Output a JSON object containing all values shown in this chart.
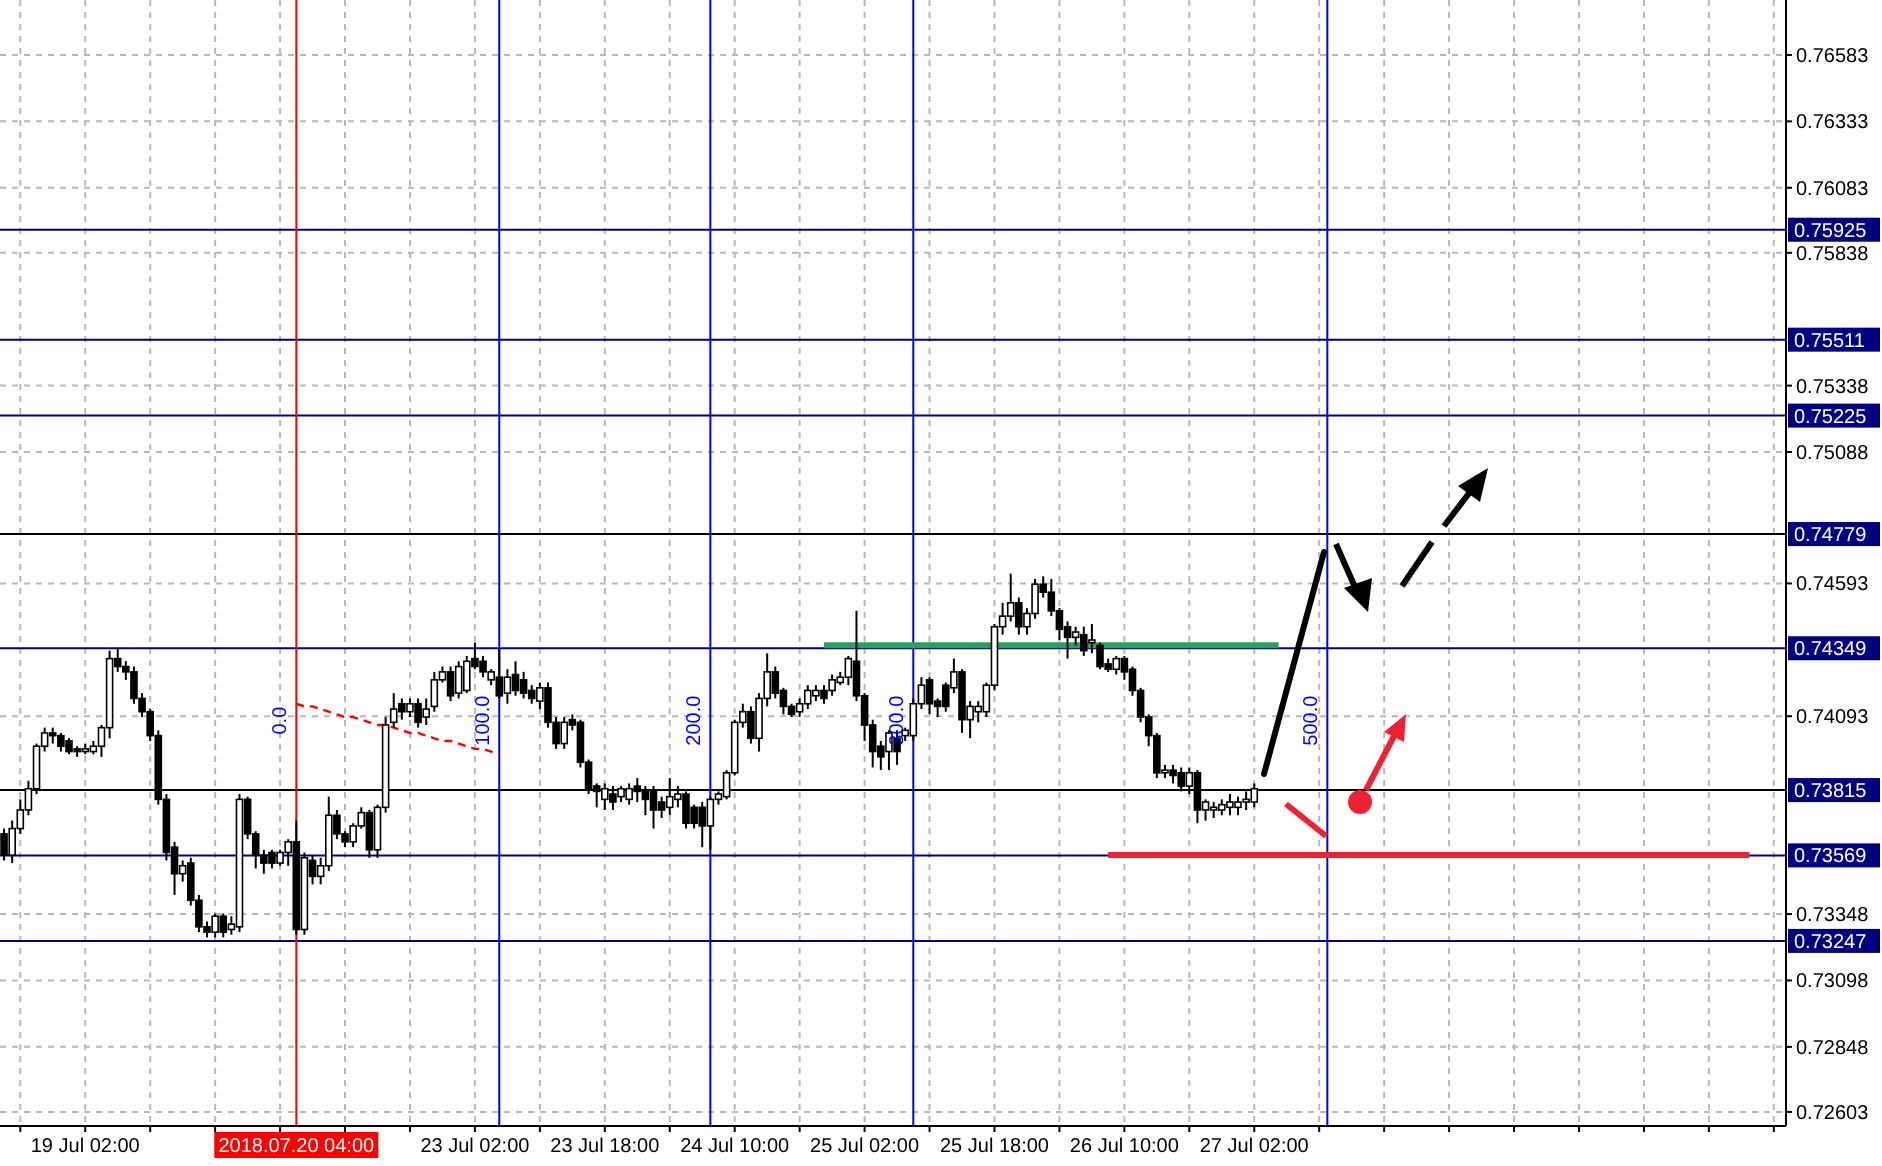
{
  "chart_data": {
    "type": "candlestick",
    "categories": [
      null,
      null,
      null,
      null,
      null,
      null,
      null,
      null,
      null,
      null,
      "19 Jul 02:00",
      null,
      null,
      null,
      null,
      null,
      null,
      null,
      null,
      null,
      null,
      null,
      null,
      null,
      null,
      null,
      null,
      null,
      null,
      null,
      null,
      null,
      null,
      null,
      null,
      null,
      "2018.07.20 04:00",
      null,
      null,
      null,
      null,
      null,
      null,
      null,
      null,
      null,
      null,
      null,
      null,
      null,
      null,
      null,
      null,
      null,
      null,
      null,
      null,
      null,
      "23 Jul 02:00",
      null,
      null,
      null,
      null,
      null,
      null,
      null,
      null,
      null,
      null,
      null,
      null,
      null,
      null,
      null,
      "23 Jul 18:00",
      null,
      null,
      null,
      null,
      null,
      null,
      null,
      null,
      null,
      null,
      null,
      null,
      null,
      null,
      null,
      "24 Jul 10:00",
      null,
      null,
      null,
      null,
      null,
      null,
      null,
      null,
      null,
      null,
      null,
      null,
      null,
      null,
      null,
      "25 Jul 02:00",
      null,
      null,
      null,
      null,
      null,
      null,
      null,
      null,
      null,
      null,
      null,
      null,
      null,
      null,
      null,
      "25 Jul 18:00",
      null,
      null,
      null,
      null,
      null,
      null,
      null,
      null,
      null,
      null,
      null,
      null,
      null,
      null,
      null,
      "26 Jul 10:00",
      null,
      null,
      null,
      null,
      null,
      null,
      null,
      null,
      null,
      null,
      null,
      null,
      null,
      null,
      null,
      "27 Jul 02:00",
      null,
      null,
      null,
      null,
      null,
      null,
      null,
      null,
      null,
      null,
      null,
      null,
      null,
      null,
      null,
      null,
      null,
      null,
      null,
      null,
      null,
      null,
      null,
      null,
      null,
      null,
      null,
      null,
      null,
      null,
      null,
      null,
      null,
      null,
      null,
      null,
      null,
      null,
      null,
      null,
      null,
      null,
      null,
      null,
      null,
      null,
      null,
      null,
      null,
      null,
      null,
      null,
      null,
      null,
      null,
      null,
      null,
      null,
      null,
      null,
      null,
      null,
      null,
      null,
      null
    ],
    "ohlc": [
      [
        0.7365,
        0.7367,
        0.7355,
        0.7357
      ],
      [
        0.7357,
        0.737,
        0.7354,
        0.7367
      ],
      [
        0.7367,
        0.7378,
        0.7365,
        0.7374
      ],
      [
        0.7374,
        0.7385,
        0.7372,
        0.7382
      ],
      [
        0.7382,
        0.7399,
        0.738,
        0.7398
      ],
      [
        0.7398,
        0.7405,
        0.7396,
        0.7403
      ],
      [
        0.7403,
        0.7405,
        0.7399,
        0.7402
      ],
      [
        0.7402,
        0.7403,
        0.7396,
        0.7398
      ],
      [
        0.74,
        0.7401,
        0.7395,
        0.7396
      ],
      [
        0.7397,
        0.7398,
        0.7394,
        0.7396
      ],
      [
        0.7396,
        0.7399,
        0.7395,
        0.7397
      ],
      [
        0.7396,
        0.74,
        0.7395,
        0.7398
      ],
      [
        0.7398,
        0.7406,
        0.7394,
        0.7405
      ],
      [
        0.7405,
        0.7434,
        0.7401,
        0.7431
      ],
      [
        0.7431,
        0.7435,
        0.7426,
        0.7428
      ],
      [
        0.7428,
        0.743,
        0.7423,
        0.7426
      ],
      [
        0.7426,
        0.7428,
        0.7414,
        0.7416
      ],
      [
        0.7416,
        0.7418,
        0.7409,
        0.7411
      ],
      [
        0.7411,
        0.7412,
        0.74,
        0.7402
      ],
      [
        0.7402,
        0.7404,
        0.7376,
        0.7378
      ],
      [
        0.7378,
        0.738,
        0.7355,
        0.7358
      ],
      [
        0.736,
        0.7362,
        0.7342,
        0.735
      ],
      [
        0.735,
        0.7355,
        0.7347,
        0.7353
      ],
      [
        0.7354,
        0.7356,
        0.7338,
        0.734
      ],
      [
        0.734,
        0.7342,
        0.7328,
        0.733
      ],
      [
        0.733,
        0.7332,
        0.7326,
        0.7328
      ],
      [
        0.7328,
        0.7335,
        0.7326,
        0.7334
      ],
      [
        0.7334,
        0.7335,
        0.7326,
        0.7328
      ],
      [
        0.7329,
        0.7334,
        0.7327,
        0.7331
      ],
      [
        0.733,
        0.738,
        0.7328,
        0.7378
      ],
      [
        0.7378,
        0.7379,
        0.7363,
        0.7365
      ],
      [
        0.7365,
        0.7366,
        0.7352,
        0.7357
      ],
      [
        0.7357,
        0.7359,
        0.735,
        0.7354
      ],
      [
        0.7358,
        0.7359,
        0.7352,
        0.7354
      ],
      [
        0.7354,
        0.7359,
        0.7353,
        0.7358
      ],
      [
        0.7358,
        0.7363,
        0.7353,
        0.7362
      ],
      [
        0.7362,
        0.737,
        0.7327,
        0.7329
      ],
      [
        0.7329,
        0.7358,
        0.7327,
        0.7356
      ],
      [
        0.7355,
        0.7357,
        0.7346,
        0.7349
      ],
      [
        0.7349,
        0.7356,
        0.7346,
        0.7353
      ],
      [
        0.7353,
        0.7379,
        0.7351,
        0.7372
      ],
      [
        0.7372,
        0.7374,
        0.7363,
        0.7365
      ],
      [
        0.7365,
        0.7366,
        0.736,
        0.7362
      ],
      [
        0.7362,
        0.7369,
        0.736,
        0.7368
      ],
      [
        0.7368,
        0.7375,
        0.7367,
        0.7373
      ],
      [
        0.7373,
        0.7374,
        0.7356,
        0.7359
      ],
      [
        0.7359,
        0.7376,
        0.7356,
        0.7375
      ],
      [
        0.7375,
        0.7409,
        0.7373,
        0.7406
      ],
      [
        0.7407,
        0.7418,
        0.7405,
        0.7412
      ],
      [
        0.7414,
        0.7416,
        0.7408,
        0.7411
      ],
      [
        0.7411,
        0.7416,
        0.7409,
        0.7414
      ],
      [
        0.7414,
        0.7416,
        0.7405,
        0.7407
      ],
      [
        0.7409,
        0.7416,
        0.7406,
        0.7412
      ],
      [
        0.7413,
        0.7426,
        0.7411,
        0.7423
      ],
      [
        0.7423,
        0.7428,
        0.7422,
        0.7426
      ],
      [
        0.7426,
        0.7428,
        0.7415,
        0.7417
      ],
      [
        0.7418,
        0.743,
        0.7416,
        0.7428
      ],
      [
        0.7419,
        0.7432,
        0.7418,
        0.743
      ],
      [
        0.7431,
        0.7437,
        0.7427,
        0.7428
      ],
      [
        0.743,
        0.7432,
        0.7424,
        0.7426
      ],
      [
        0.7423,
        0.7427,
        0.7421,
        0.7426
      ],
      [
        0.7424,
        0.7435,
        0.7416,
        0.7417
      ],
      [
        0.7418,
        0.7427,
        0.7414,
        0.7424
      ],
      [
        0.7425,
        0.743,
        0.7417,
        0.7419
      ],
      [
        0.7423,
        0.7426,
        0.7416,
        0.7418
      ],
      [
        0.7419,
        0.7421,
        0.7414,
        0.7416
      ],
      [
        0.7415,
        0.7422,
        0.7412,
        0.742
      ],
      [
        0.742,
        0.7422,
        0.7405,
        0.7407
      ],
      [
        0.7407,
        0.7409,
        0.7397,
        0.7399
      ],
      [
        0.7399,
        0.7409,
        0.7397,
        0.7407
      ],
      [
        0.7408,
        0.741,
        0.7404,
        0.7406
      ],
      [
        0.7407,
        0.7408,
        0.739,
        0.7392
      ],
      [
        0.7392,
        0.7393,
        0.738,
        0.7382
      ],
      [
        0.7383,
        0.7384,
        0.7375,
        0.7381
      ],
      [
        0.7378,
        0.7384,
        0.7374,
        0.7382
      ],
      [
        0.738,
        0.7383,
        0.7374,
        0.7377
      ],
      [
        0.7379,
        0.7383,
        0.7377,
        0.7382
      ],
      [
        0.7378,
        0.7384,
        0.7376,
        0.7382
      ],
      [
        0.7383,
        0.7386,
        0.7377,
        0.7381
      ],
      [
        0.7381,
        0.7383,
        0.7372,
        0.7378
      ],
      [
        0.7381,
        0.7383,
        0.7367,
        0.7374
      ],
      [
        0.7377,
        0.7379,
        0.7371,
        0.7374
      ],
      [
        0.7375,
        0.7386,
        0.7372,
        0.7379
      ],
      [
        0.7378,
        0.7383,
        0.7375,
        0.738
      ],
      [
        0.738,
        0.7381,
        0.7367,
        0.7369
      ],
      [
        0.7375,
        0.7376,
        0.7367,
        0.7369
      ],
      [
        0.7375,
        0.7377,
        0.736,
        0.7368
      ],
      [
        0.7368,
        0.7379,
        0.7359,
        0.7378
      ],
      [
        0.7378,
        0.7381,
        0.7376,
        0.738
      ],
      [
        0.7379,
        0.7389,
        0.7378,
        0.7388
      ],
      [
        0.7388,
        0.7408,
        0.7387,
        0.7407
      ],
      [
        0.7407,
        0.7414,
        0.7405,
        0.7411
      ],
      [
        0.7411,
        0.7413,
        0.7399,
        0.7401
      ],
      [
        0.7401,
        0.7418,
        0.7396,
        0.7416
      ],
      [
        0.7416,
        0.7433,
        0.7413,
        0.7426
      ],
      [
        0.7426,
        0.7428,
        0.7416,
        0.7418
      ],
      [
        0.7419,
        0.742,
        0.741,
        0.7413
      ],
      [
        0.7413,
        0.7414,
        0.7409,
        0.741
      ],
      [
        0.7411,
        0.7416,
        0.7409,
        0.7414
      ],
      [
        0.7414,
        0.7421,
        0.7412,
        0.7419
      ],
      [
        0.7417,
        0.7421,
        0.7415,
        0.7419
      ],
      [
        0.7419,
        0.7421,
        0.7414,
        0.7416
      ],
      [
        0.7419,
        0.7425,
        0.7417,
        0.7423
      ],
      [
        0.7422,
        0.7426,
        0.7421,
        0.7424
      ],
      [
        0.7424,
        0.7432,
        0.7421,
        0.7431
      ],
      [
        0.743,
        0.7449,
        0.7415,
        0.7417
      ],
      [
        0.7417,
        0.7418,
        0.74,
        0.7406
      ],
      [
        0.7406,
        0.7408,
        0.739,
        0.7396
      ],
      [
        0.7398,
        0.74,
        0.7389,
        0.7394
      ],
      [
        0.7396,
        0.7404,
        0.7389,
        0.7403
      ],
      [
        0.7401,
        0.7404,
        0.7391,
        0.7396
      ],
      [
        0.7402,
        0.7405,
        0.74,
        0.7404
      ],
      [
        0.7402,
        0.7416,
        0.74,
        0.7414
      ],
      [
        0.7414,
        0.7424,
        0.7412,
        0.7421
      ],
      [
        0.7423,
        0.7424,
        0.741,
        0.7414
      ],
      [
        0.7415,
        0.7416,
        0.7409,
        0.7413
      ],
      [
        0.7421,
        0.7422,
        0.7411,
        0.7413
      ],
      [
        0.742,
        0.7431,
        0.7418,
        0.7426
      ],
      [
        0.7426,
        0.7427,
        0.7403,
        0.7408
      ],
      [
        0.7408,
        0.7415,
        0.7401,
        0.7413
      ],
      [
        0.7411,
        0.7415,
        0.7407,
        0.7413
      ],
      [
        0.7411,
        0.7422,
        0.7409,
        0.7421
      ],
      [
        0.7421,
        0.7444,
        0.7419,
        0.7443
      ],
      [
        0.7443,
        0.7452,
        0.744,
        0.7447
      ],
      [
        0.7447,
        0.7463,
        0.7445,
        0.7452
      ],
      [
        0.7452,
        0.7454,
        0.744,
        0.7443
      ],
      [
        0.7443,
        0.745,
        0.744,
        0.7448
      ],
      [
        0.7448,
        0.7461,
        0.7446,
        0.7459
      ],
      [
        0.7459,
        0.7462,
        0.7454,
        0.7456
      ],
      [
        0.7456,
        0.7461,
        0.7447,
        0.7449
      ],
      [
        0.7449,
        0.745,
        0.7438,
        0.7442
      ],
      [
        0.7443,
        0.7445,
        0.7431,
        0.7439
      ],
      [
        0.7439,
        0.7443,
        0.7436,
        0.7441
      ],
      [
        0.744,
        0.7443,
        0.7432,
        0.7434
      ],
      [
        0.7437,
        0.7444,
        0.7433,
        0.7438
      ],
      [
        0.7436,
        0.7437,
        0.7427,
        0.7428
      ],
      [
        0.7429,
        0.7431,
        0.7426,
        0.7427
      ],
      [
        0.7427,
        0.7432,
        0.7425,
        0.7431
      ],
      [
        0.7431,
        0.7432,
        0.7423,
        0.7426
      ],
      [
        0.7427,
        0.7428,
        0.7417,
        0.7419
      ],
      [
        0.7419,
        0.742,
        0.7407,
        0.7409
      ],
      [
        0.7409,
        0.741,
        0.7398,
        0.7402
      ],
      [
        0.7402,
        0.7403,
        0.7386,
        0.7388
      ],
      [
        0.7388,
        0.7391,
        0.7386,
        0.7389
      ],
      [
        0.7389,
        0.7391,
        0.7384,
        0.7387
      ],
      [
        0.7388,
        0.739,
        0.7381,
        0.7383
      ],
      [
        0.7383,
        0.739,
        0.738,
        0.7388
      ],
      [
        0.7388,
        0.7389,
        0.7369,
        0.7374
      ],
      [
        0.7374,
        0.7378,
        0.737,
        0.7377
      ],
      [
        0.7374,
        0.7377,
        0.7371,
        0.7375
      ],
      [
        0.7374,
        0.7378,
        0.7372,
        0.7376
      ],
      [
        0.7375,
        0.738,
        0.7372,
        0.7377
      ],
      [
        0.7375,
        0.7379,
        0.7372,
        0.7377
      ],
      [
        0.7377,
        0.7381,
        0.7374,
        0.7378
      ],
      [
        0.7377,
        0.7384,
        0.7375,
        0.7382
      ],
      null,
      null,
      null,
      null,
      null,
      null,
      null,
      null,
      null,
      null,
      null,
      null,
      null,
      null,
      null,
      null,
      null,
      null,
      null,
      null,
      null,
      null,
      null,
      null,
      null,
      null,
      null,
      null,
      null,
      null,
      null,
      null,
      null,
      null,
      null,
      null,
      null,
      null,
      null,
      null,
      null,
      null,
      null,
      null,
      null,
      null,
      null,
      null,
      null,
      null,
      null,
      null,
      null,
      null,
      null,
      null,
      null,
      null,
      null,
      null,
      null,
      null,
      null,
      null,
      null
    ],
    "series": [
      {
        "type": "line",
        "color": "#ff0000",
        "line_style": "dashed",
        "values": [
          null,
          null,
          null,
          null,
          null,
          null,
          null,
          null,
          null,
          null,
          null,
          null,
          null,
          null,
          null,
          null,
          null,
          null,
          null,
          null,
          null,
          null,
          null,
          null,
          null,
          null,
          null,
          null,
          null,
          null,
          null,
          null,
          null,
          null,
          null,
          null,
          0.7414,
          0.7413,
          0.7413,
          0.7412,
          0.7411,
          0.741,
          0.7409,
          0.7409,
          0.7408,
          0.7407,
          0.7406,
          0.7406,
          0.7405,
          0.7404,
          0.7403,
          0.7403,
          0.7402,
          0.7401,
          0.74,
          0.74,
          0.7399,
          0.7398,
          0.7397,
          0.7397,
          0.7396,
          0.7395,
          null,
          null,
          null,
          null,
          null,
          null,
          null,
          null,
          null,
          null,
          null,
          null,
          null,
          null,
          null,
          null,
          null,
          null,
          null,
          null,
          null,
          null,
          null,
          null,
          null,
          null,
          null,
          null,
          null,
          null,
          null,
          null,
          null,
          null,
          null,
          null,
          null,
          null,
          null,
          null,
          null,
          null,
          null,
          null,
          null,
          null,
          null,
          null,
          null,
          null,
          null,
          null,
          null,
          null,
          null,
          null,
          null,
          null,
          null,
          null,
          null,
          null,
          null,
          null,
          null,
          null,
          null,
          null,
          null,
          null,
          null,
          null,
          null,
          null,
          null,
          null,
          null,
          null,
          null,
          null,
          null,
          null,
          null,
          null,
          null,
          null,
          null,
          null,
          null,
          null,
          null,
          null,
          null,
          null,
          null,
          null,
          null,
          null,
          null,
          null,
          null,
          null,
          null,
          null,
          null,
          null,
          null,
          null,
          null,
          null,
          null,
          null,
          null,
          null,
          null,
          null,
          null,
          null,
          null,
          null,
          null,
          null,
          null,
          null,
          null,
          null,
          null,
          null,
          null,
          null,
          null,
          null,
          null,
          null,
          null,
          null,
          null,
          null,
          null,
          null,
          null,
          null,
          null,
          null,
          null,
          null,
          null,
          null,
          null,
          null,
          null,
          null,
          null,
          null,
          null,
          null,
          null,
          null
        ]
      },
      {
        "type": "line",
        "color": "#2ca05a",
        "values": [
          null,
          null,
          null,
          null,
          null,
          null,
          null,
          null,
          null,
          null,
          null,
          null,
          null,
          null,
          null,
          null,
          null,
          null,
          null,
          null,
          null,
          null,
          null,
          null,
          null,
          null,
          null,
          null,
          null,
          null,
          null,
          null,
          null,
          null,
          null,
          null,
          null,
          null,
          null,
          null,
          null,
          null,
          null,
          null,
          null,
          null,
          null,
          null,
          null,
          null,
          null,
          null,
          null,
          null,
          null,
          null,
          null,
          null,
          null,
          null,
          null,
          null,
          null,
          null,
          null,
          null,
          null,
          null,
          null,
          null,
          null,
          null,
          null,
          null,
          null,
          null,
          null,
          null,
          null,
          null,
          null,
          null,
          null,
          null,
          null,
          null,
          null,
          null,
          null,
          null,
          null,
          null,
          null,
          null,
          null,
          null,
          null,
          null,
          null,
          null,
          null,
          0.7436,
          0.7436,
          0.7436,
          0.7436,
          0.7436,
          0.7436,
          0.7436,
          0.7436,
          0.7436,
          0.7436,
          0.7436,
          0.7436,
          0.7436,
          0.7436,
          0.7436,
          0.7436,
          0.7436,
          0.7436,
          0.7436,
          0.7436,
          0.7436,
          0.7436,
          0.7436,
          0.7436,
          0.7436,
          0.7436,
          0.7436,
          0.7436,
          0.7436,
          0.7436,
          0.7436,
          0.7436,
          0.7436,
          0.7436,
          0.7436,
          0.7436,
          0.7436,
          0.7436,
          0.7436,
          0.7436,
          0.7436,
          0.7436,
          0.7436,
          0.7436,
          0.7436,
          0.7436,
          0.7436,
          0.7436,
          0.7436,
          0.7436,
          0.7436,
          0.7436,
          0.7436,
          0.7436,
          0.7436,
          0.7436,
          0.7436,
          null,
          null,
          null,
          null,
          null,
          null,
          null,
          null,
          null,
          null,
          null,
          null,
          null,
          null,
          null,
          null,
          null,
          null,
          null,
          null,
          null,
          null,
          null,
          null,
          null,
          null,
          null,
          null,
          null,
          null,
          null,
          null,
          null,
          null,
          null,
          null,
          null,
          null,
          null,
          null,
          null,
          null,
          null,
          null,
          null,
          null,
          null,
          null,
          null,
          null,
          null,
          null,
          null,
          null,
          null,
          null,
          null,
          null,
          null,
          null,
          null,
          null
        ]
      },
      {
        "type": "line",
        "color": "#ee2233",
        "values": [
          null,
          null,
          null,
          null,
          null,
          null,
          null,
          null,
          null,
          null,
          null,
          null,
          null,
          null,
          null,
          null,
          null,
          null,
          null,
          null,
          null,
          null,
          null,
          null,
          null,
          null,
          null,
          null,
          null,
          null,
          null,
          null,
          null,
          null,
          null,
          null,
          null,
          null,
          null,
          null,
          null,
          null,
          null,
          null,
          null,
          null,
          null,
          null,
          null,
          null,
          null,
          null,
          null,
          null,
          null,
          null,
          null,
          null,
          null,
          null,
          null,
          null,
          null,
          null,
          null,
          null,
          null,
          null,
          null,
          null,
          null,
          null,
          null,
          null,
          null,
          null,
          null,
          null,
          null,
          null,
          null,
          null,
          null,
          null,
          null,
          null,
          null,
          null,
          null,
          null,
          null,
          null,
          null,
          null,
          null,
          null,
          null,
          null,
          null,
          null,
          null,
          null,
          null,
          null,
          null,
          null,
          null,
          null,
          null,
          null,
          null,
          null,
          null,
          null,
          null,
          null,
          null,
          null,
          null,
          null,
          null,
          null,
          null,
          null,
          null,
          null,
          null,
          null,
          null,
          null,
          null,
          null,
          null,
          null,
          null,
          null,
          0.7357,
          0.7357,
          0.7357,
          0.7357,
          0.7357,
          0.7357,
          0.7357,
          0.7357,
          0.7357,
          0.7357,
          0.7357,
          0.7357,
          0.7357,
          0.7357,
          0.7357,
          0.7357,
          0.7357,
          0.7357,
          0.7357,
          0.7357,
          0.7357,
          0.7357,
          0.7357,
          0.7357,
          0.7357,
          0.7357,
          0.7357,
          0.7357,
          0.7357,
          0.7357,
          0.7357,
          0.7357,
          0.7357,
          0.7357,
          0.7357,
          0.7357,
          0.7357,
          0.7357,
          0.7357,
          0.7357,
          0.7357,
          0.7357,
          0.7357,
          0.7357,
          0.7357,
          0.7357,
          0.7357,
          0.7357,
          0.7357,
          0.7357,
          0.7357,
          0.7357,
          0.7357,
          0.7357,
          0.7357,
          0.7357,
          0.7357,
          0.7357,
          0.7357,
          0.7357,
          0.7357,
          0.7357,
          0.7357,
          0.7357,
          0.7357,
          0.7357,
          0.7357,
          0.7357,
          0.7357,
          0.7357,
          0.7357,
          0.7357,
          0.7357,
          0.7357,
          0.7357,
          0.7357,
          0.7357,
          0.7357,
          0.7357,
          0.7357,
          null,
          null,
          null,
          null
        ]
      }
    ],
    "ylim": [
      0.7255,
      0.7679
    ],
    "yticks": [
      0.76583,
      0.76333,
      0.76083,
      0.75838,
      0.75338,
      0.75088,
      0.74593,
      0.74093,
      0.73348,
      0.73098,
      0.72848,
      0.72603
    ],
    "grid": true,
    "ref_lines": [
      {
        "axis": "y",
        "value": 0.75925,
        "label": "0.75925",
        "color": "#000080"
      },
      {
        "axis": "y",
        "value": 0.75511,
        "label": "0.75511",
        "color": "#000080"
      },
      {
        "axis": "y",
        "value": 0.75225,
        "label": "0.75225",
        "color": "#000080"
      },
      {
        "axis": "y",
        "value": 0.74779,
        "label": "0.74779",
        "color": "#000000"
      },
      {
        "axis": "y",
        "value": 0.74349,
        "label": "0.74349",
        "color": "#000080"
      },
      {
        "axis": "y",
        "value": 0.73815,
        "label": "0.73815",
        "color": "#000000"
      },
      {
        "axis": "y",
        "value": 0.73569,
        "label": "0.73569",
        "color": "#000080"
      },
      {
        "axis": "y",
        "value": 0.73247,
        "label": "0.73247",
        "color": "#000080"
      },
      {
        "axis": "x",
        "value": "2018.07.20 04:00",
        "color": "#ff0000"
      }
    ],
    "annotations": [
      "0.0",
      "100.0",
      "200.0",
      "300.0",
      "500.0"
    ]
  }
}
